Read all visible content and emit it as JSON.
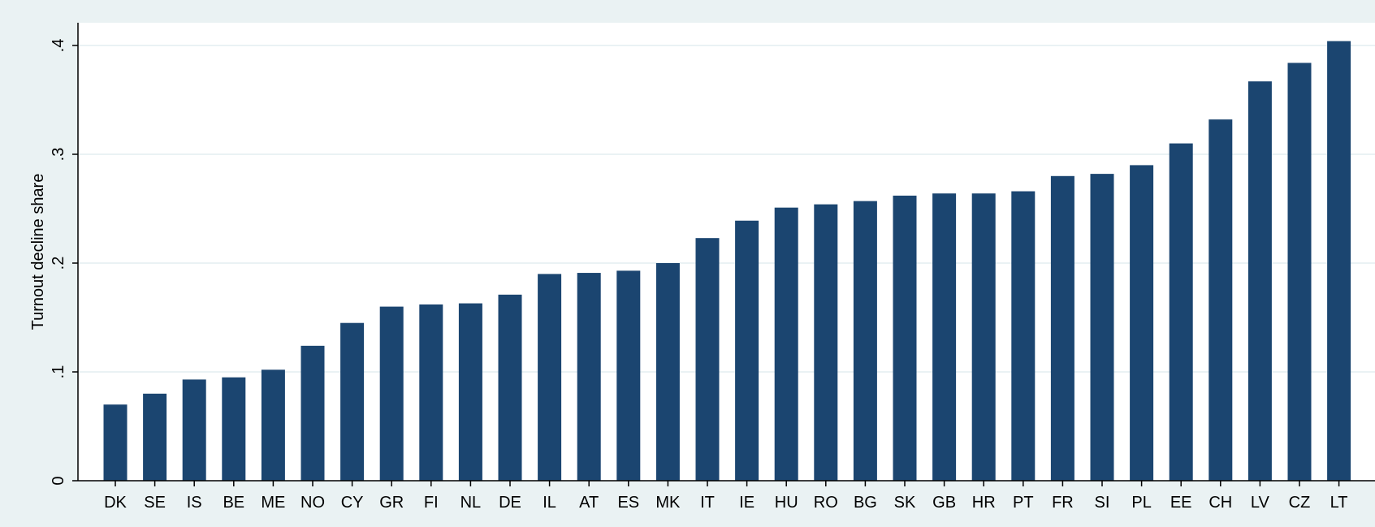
{
  "chart_data": {
    "type": "bar",
    "title": "",
    "xlabel": "",
    "ylabel": "Turnout decline share",
    "ylim": [
      0,
      0.42
    ],
    "yticks": [
      0,
      0.1,
      0.2,
      0.3,
      0.4
    ],
    "ytick_labels": [
      "0",
      ".1",
      ".2",
      ".3",
      ".4"
    ],
    "grid": true,
    "categories": [
      "DK",
      "SE",
      "IS",
      "BE",
      "ME",
      "NO",
      "CY",
      "GR",
      "FI",
      "NL",
      "DE",
      "IL",
      "AT",
      "ES",
      "MK",
      "IT",
      "IE",
      "HU",
      "RO",
      "BG",
      "SK",
      "GB",
      "HR",
      "PT",
      "FR",
      "SI",
      "PL",
      "EE",
      "CH",
      "LV",
      "CZ",
      "LT"
    ],
    "values": [
      0.07,
      0.08,
      0.093,
      0.095,
      0.102,
      0.124,
      0.145,
      0.16,
      0.162,
      0.163,
      0.171,
      0.19,
      0.191,
      0.193,
      0.2,
      0.223,
      0.239,
      0.251,
      0.254,
      0.257,
      0.262,
      0.264,
      0.264,
      0.266,
      0.28,
      0.282,
      0.29,
      0.31,
      0.332,
      0.367,
      0.384,
      0.404
    ]
  },
  "colors": {
    "bar": "#1b4570",
    "plot_background": "#ffffff",
    "outer_background": "#eaf2f3",
    "grid": "#e3eef0",
    "axis": "#000000",
    "text": "#000000"
  }
}
